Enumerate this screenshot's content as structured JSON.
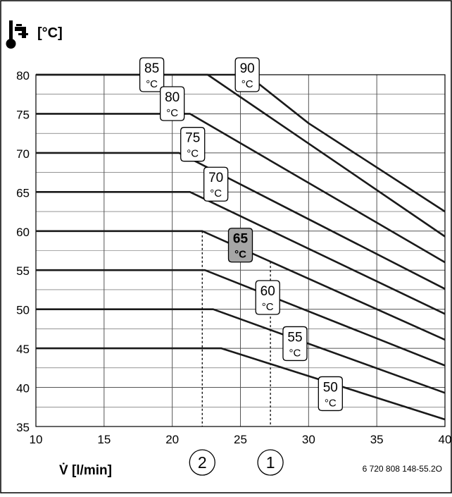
{
  "chart_data": {
    "type": "line",
    "ylabel": "[°C]",
    "xlabel": "V̇ [l/min]",
    "xlim": [
      10,
      40
    ],
    "ylim": [
      35,
      80
    ],
    "x_ticks": [
      "10",
      "15",
      "20",
      "25",
      "30",
      "35",
      "40"
    ],
    "y_ticks": [
      "35",
      "40",
      "45",
      "50",
      "55",
      "60",
      "65",
      "70",
      "75",
      "80"
    ],
    "grid": true,
    "series": [
      {
        "name": "90",
        "label": "°C",
        "points": [
          [
            10,
            80
          ],
          [
            25.5,
            80
          ],
          [
            30,
            73.8
          ],
          [
            40,
            62.5
          ]
        ]
      },
      {
        "name": "85",
        "label": "°C",
        "points": [
          [
            10,
            80
          ],
          [
            22.6,
            80
          ],
          [
            40,
            59.3
          ]
        ]
      },
      {
        "name": "80",
        "label": "°C",
        "points": [
          [
            10,
            75
          ],
          [
            21.3,
            75
          ],
          [
            40,
            56
          ]
        ]
      },
      {
        "name": "75",
        "label": "°C",
        "points": [
          [
            10,
            70
          ],
          [
            20.5,
            70
          ],
          [
            40,
            52.6
          ]
        ]
      },
      {
        "name": "70",
        "label": "°C",
        "points": [
          [
            10,
            65
          ],
          [
            21.3,
            65
          ],
          [
            40,
            49.4
          ]
        ]
      },
      {
        "name": "65",
        "label": "°C",
        "highlighted": true,
        "points": [
          [
            10,
            60
          ],
          [
            22.2,
            60
          ],
          [
            40,
            46.1
          ]
        ]
      },
      {
        "name": "60",
        "label": "°C",
        "points": [
          [
            10,
            55
          ],
          [
            22.4,
            55
          ],
          [
            40,
            42.8
          ]
        ]
      },
      {
        "name": "55",
        "label": "°C",
        "points": [
          [
            10,
            50
          ],
          [
            23,
            50
          ],
          [
            40,
            39.3
          ]
        ]
      },
      {
        "name": "50",
        "label": "°C",
        "points": [
          [
            10,
            45
          ],
          [
            23.6,
            45
          ],
          [
            40,
            35.9
          ]
        ]
      }
    ],
    "markers": [
      {
        "label": "2",
        "x": 22.2
      },
      {
        "label": "1",
        "x": 27.2
      }
    ],
    "footnote": "6 720 808 148-55.2O"
  },
  "icons": {
    "axis_icon": "tap-thermometer-icon"
  },
  "colors": {
    "line": "#1a1a1a",
    "grid": "#555555",
    "highlight_fill": "#a6a6a6"
  }
}
